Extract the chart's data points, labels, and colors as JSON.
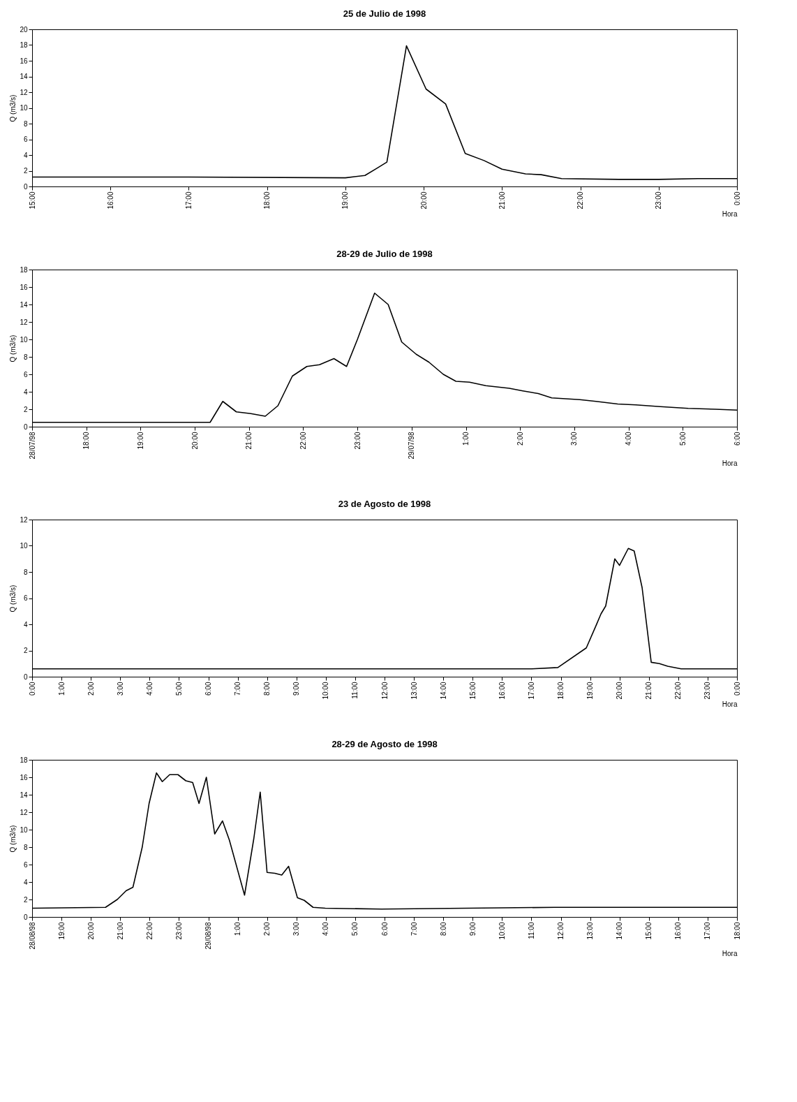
{
  "chart_data": [
    {
      "type": "line",
      "title": "25 de Julio de 1998",
      "xlabel": "Hora",
      "ylabel": "Q (m3/s)",
      "grid": false,
      "x": [
        15,
        17,
        19,
        19.25,
        19.4,
        19.53,
        19.78,
        20.03,
        20.28,
        20.53,
        20.77,
        21.0,
        21.3,
        21.5,
        21.76,
        22.5,
        23,
        23.5,
        24
      ],
      "series": [
        {
          "color": "#000000",
          "values": [
            1.2,
            1.2,
            1.1,
            1.4,
            2.3,
            3.1,
            17.9,
            12.4,
            10.5,
            4.2,
            3.3,
            2.2,
            1.6,
            1.5,
            1.0,
            0.9,
            0.9,
            1.0,
            1.0
          ]
        }
      ],
      "xlim": [
        15,
        24
      ],
      "xticks": [
        {
          "value": 15,
          "label": "15:00"
        },
        {
          "value": 16,
          "label": "16:00"
        },
        {
          "value": 17,
          "label": "17:00"
        },
        {
          "value": 18,
          "label": "18:00"
        },
        {
          "value": 19,
          "label": "19:00"
        },
        {
          "value": 20,
          "label": "20:00"
        },
        {
          "value": 21,
          "label": "21:00"
        },
        {
          "value": 22,
          "label": "22:00"
        },
        {
          "value": 23,
          "label": "23:00"
        },
        {
          "value": 24,
          "label": "0:00"
        }
      ],
      "ylim": [
        0,
        20
      ],
      "yticks": [
        0,
        2,
        4,
        6,
        8,
        10,
        12,
        14,
        16,
        18,
        20
      ]
    },
    {
      "type": "line",
      "title": "28-29 de Julio de 1998",
      "xlabel": "Hora",
      "ylabel": "Q (m3/s)",
      "grid": false,
      "x": [
        "1998-07-28T17:00",
        "1998-07-28T20:17",
        "1998-07-28T20:31",
        "1998-07-28T20:46",
        "1998-07-28T21:02",
        "1998-07-28T21:18",
        "1998-07-28T21:32",
        "1998-07-28T21:48",
        "1998-07-28T22:04",
        "1998-07-28T22:18",
        "1998-07-28T22:34",
        "1998-07-28T22:48",
        "1998-07-28T23:00",
        "1998-07-28T23:19",
        "1998-07-28T23:34",
        "1998-07-28T23:49",
        "1998-07-29T00:05",
        "1998-07-29T00:19",
        "1998-07-29T00:35",
        "1998-07-29T00:49",
        "1998-07-29T01:04",
        "1998-07-29T01:22",
        "1998-07-29T01:48",
        "1998-07-29T02:03",
        "1998-07-29T02:20",
        "1998-07-29T02:35",
        "1998-07-29T03:06",
        "1998-07-29T03:24",
        "1998-07-29T03:48",
        "1998-07-29T04:08",
        "1998-07-29T04:35",
        "1998-07-29T05:06",
        "1998-07-29T05:36",
        "1998-07-29T06:00"
      ],
      "series": [
        {
          "color": "#000000",
          "values": [
            0.5,
            0.5,
            2.9,
            1.7,
            1.5,
            1.2,
            2.4,
            5.8,
            6.9,
            7.1,
            7.8,
            6.9,
            10.0,
            15.3,
            14.0,
            9.7,
            8.3,
            7.4,
            6.0,
            5.2,
            5.1,
            4.7,
            4.4,
            4.1,
            3.8,
            3.3,
            3.1,
            2.9,
            2.6,
            2.5,
            2.3,
            2.1,
            2.0,
            1.9
          ]
        }
      ],
      "xlim": [
        "1998-07-28T17:00",
        "1998-07-29T06:00"
      ],
      "xticks": [
        {
          "value": "1998-07-28T17:00",
          "label": "28/07/98"
        },
        {
          "value": "1998-07-28T18:00",
          "label": "18:00"
        },
        {
          "value": "1998-07-28T19:00",
          "label": "19:00"
        },
        {
          "value": "1998-07-28T20:00",
          "label": "20:00"
        },
        {
          "value": "1998-07-28T21:00",
          "label": "21:00"
        },
        {
          "value": "1998-07-28T22:00",
          "label": "22:00"
        },
        {
          "value": "1998-07-28T23:00",
          "label": "23:00"
        },
        {
          "value": "1998-07-29T00:00",
          "label": "29/07/98"
        },
        {
          "value": "1998-07-29T01:00",
          "label": "1:00"
        },
        {
          "value": "1998-07-29T02:00",
          "label": "2:00"
        },
        {
          "value": "1998-07-29T03:00",
          "label": "3:00"
        },
        {
          "value": "1998-07-29T04:00",
          "label": "4:00"
        },
        {
          "value": "1998-07-29T05:00",
          "label": "5:00"
        },
        {
          "value": "1998-07-29T06:00",
          "label": "6:00"
        }
      ],
      "ylim": [
        0,
        18
      ],
      "yticks": [
        0,
        2,
        4,
        6,
        8,
        10,
        12,
        14,
        16,
        18
      ]
    },
    {
      "type": "line",
      "title": "23 de Agosto de 1998",
      "xlabel": "Hora",
      "ylabel": "Q (m3/s)",
      "grid": false,
      "x": [
        0,
        17,
        17.9,
        18.87,
        19.2,
        19.37,
        19.53,
        19.84,
        20.0,
        20.3,
        20.5,
        20.77,
        21.08,
        21.36,
        21.64,
        22.1,
        24
      ],
      "series": [
        {
          "color": "#000000",
          "values": [
            0.6,
            0.6,
            0.7,
            2.2,
            3.9,
            4.8,
            5.4,
            9.0,
            8.5,
            9.8,
            9.6,
            6.8,
            1.1,
            1.0,
            0.8,
            0.6,
            0.6
          ]
        }
      ],
      "xlim": [
        0,
        24
      ],
      "xticks": [
        {
          "value": 0,
          "label": "0:00"
        },
        {
          "value": 1,
          "label": "1:00"
        },
        {
          "value": 2,
          "label": "2:00"
        },
        {
          "value": 3,
          "label": "3:00"
        },
        {
          "value": 4,
          "label": "4:00"
        },
        {
          "value": 5,
          "label": "5:00"
        },
        {
          "value": 6,
          "label": "6:00"
        },
        {
          "value": 7,
          "label": "7:00"
        },
        {
          "value": 8,
          "label": "8:00"
        },
        {
          "value": 9,
          "label": "9:00"
        },
        {
          "value": 10,
          "label": "10:00"
        },
        {
          "value": 11,
          "label": "11:00"
        },
        {
          "value": 12,
          "label": "12:00"
        },
        {
          "value": 13,
          "label": "13:00"
        },
        {
          "value": 14,
          "label": "14:00"
        },
        {
          "value": 15,
          "label": "15:00"
        },
        {
          "value": 16,
          "label": "16:00"
        },
        {
          "value": 17,
          "label": "17:00"
        },
        {
          "value": 18,
          "label": "18:00"
        },
        {
          "value": 19,
          "label": "19:00"
        },
        {
          "value": 20,
          "label": "20:00"
        },
        {
          "value": 21,
          "label": "21:00"
        },
        {
          "value": 22,
          "label": "22:00"
        },
        {
          "value": 23,
          "label": "23:00"
        },
        {
          "value": 24,
          "label": "0:00"
        }
      ],
      "ylim": [
        0,
        12
      ],
      "yticks": [
        0,
        2,
        4,
        6,
        8,
        10,
        12
      ]
    },
    {
      "type": "line",
      "title": "28-29 de Agosto de 1998",
      "xlabel": "Hora",
      "ylabel": "Q (m3/s)",
      "grid": false,
      "x": [
        "1998-08-28T18:00",
        "1998-08-28T20:30",
        "1998-08-28T20:54",
        "1998-08-28T21:12",
        "1998-08-28T21:26",
        "1998-08-28T21:45",
        "1998-08-28T21:59",
        "1998-08-28T22:14",
        "1998-08-28T22:26",
        "1998-08-28T22:41",
        "1998-08-28T22:58",
        "1998-08-28T23:14",
        "1998-08-28T23:28",
        "1998-08-28T23:41",
        "1998-08-28T23:56",
        "1998-08-29T00:13",
        "1998-08-29T00:29",
        "1998-08-29T00:43",
        "1998-08-29T01:14",
        "1998-08-29T01:33",
        "1998-08-29T01:46",
        "1998-08-29T02:00",
        "1998-08-29T02:16",
        "1998-08-29T02:30",
        "1998-08-29T02:44",
        "1998-08-29T03:02",
        "1998-08-29T03:16",
        "1998-08-29T03:34",
        "1998-08-29T03:59",
        "1998-08-29T05:54",
        "1998-08-29T11:48",
        "1998-08-29T18:00"
      ],
      "series": [
        {
          "color": "#000000",
          "values": [
            1.0,
            1.1,
            2.0,
            3.0,
            3.4,
            8.0,
            13.0,
            16.5,
            15.5,
            16.3,
            16.3,
            15.6,
            15.4,
            13.0,
            16.0,
            9.5,
            11.0,
            8.8,
            2.5,
            9.0,
            14.3,
            5.1,
            5.0,
            4.8,
            5.8,
            2.2,
            1.9,
            1.1,
            1.0,
            0.9,
            1.1,
            1.1
          ]
        }
      ],
      "xlim": [
        "1998-08-28T18:00",
        "1998-08-29T18:00"
      ],
      "xticks": [
        {
          "value": "1998-08-28T18:00",
          "label": "28/08/98"
        },
        {
          "value": "1998-08-28T19:00",
          "label": "19:00"
        },
        {
          "value": "1998-08-28T20:00",
          "label": "20:00"
        },
        {
          "value": "1998-08-28T21:00",
          "label": "21:00"
        },
        {
          "value": "1998-08-28T22:00",
          "label": "22:00"
        },
        {
          "value": "1998-08-28T23:00",
          "label": "23:00"
        },
        {
          "value": "1998-08-29T00:00",
          "label": "29/08/98"
        },
        {
          "value": "1998-08-29T01:00",
          "label": "1:00"
        },
        {
          "value": "1998-08-29T02:00",
          "label": "2:00"
        },
        {
          "value": "1998-08-29T03:00",
          "label": "3:00"
        },
        {
          "value": "1998-08-29T04:00",
          "label": "4:00"
        },
        {
          "value": "1998-08-29T05:00",
          "label": "5:00"
        },
        {
          "value": "1998-08-29T06:00",
          "label": "6:00"
        },
        {
          "value": "1998-08-29T07:00",
          "label": "7:00"
        },
        {
          "value": "1998-08-29T08:00",
          "label": "8:00"
        },
        {
          "value": "1998-08-29T09:00",
          "label": "9:00"
        },
        {
          "value": "1998-08-29T10:00",
          "label": "10:00"
        },
        {
          "value": "1998-08-29T11:00",
          "label": "11:00"
        },
        {
          "value": "1998-08-29T12:00",
          "label": "12:00"
        },
        {
          "value": "1998-08-29T13:00",
          "label": "13:00"
        },
        {
          "value": "1998-08-29T14:00",
          "label": "14:00"
        },
        {
          "value": "1998-08-29T15:00",
          "label": "15:00"
        },
        {
          "value": "1998-08-29T16:00",
          "label": "16:00"
        },
        {
          "value": "1998-08-29T17:00",
          "label": "17:00"
        },
        {
          "value": "1998-08-29T18:00",
          "label": "18:00"
        }
      ],
      "ylim": [
        0,
        18
      ],
      "yticks": [
        0,
        2,
        4,
        6,
        8,
        10,
        12,
        14,
        16,
        18
      ]
    }
  ]
}
